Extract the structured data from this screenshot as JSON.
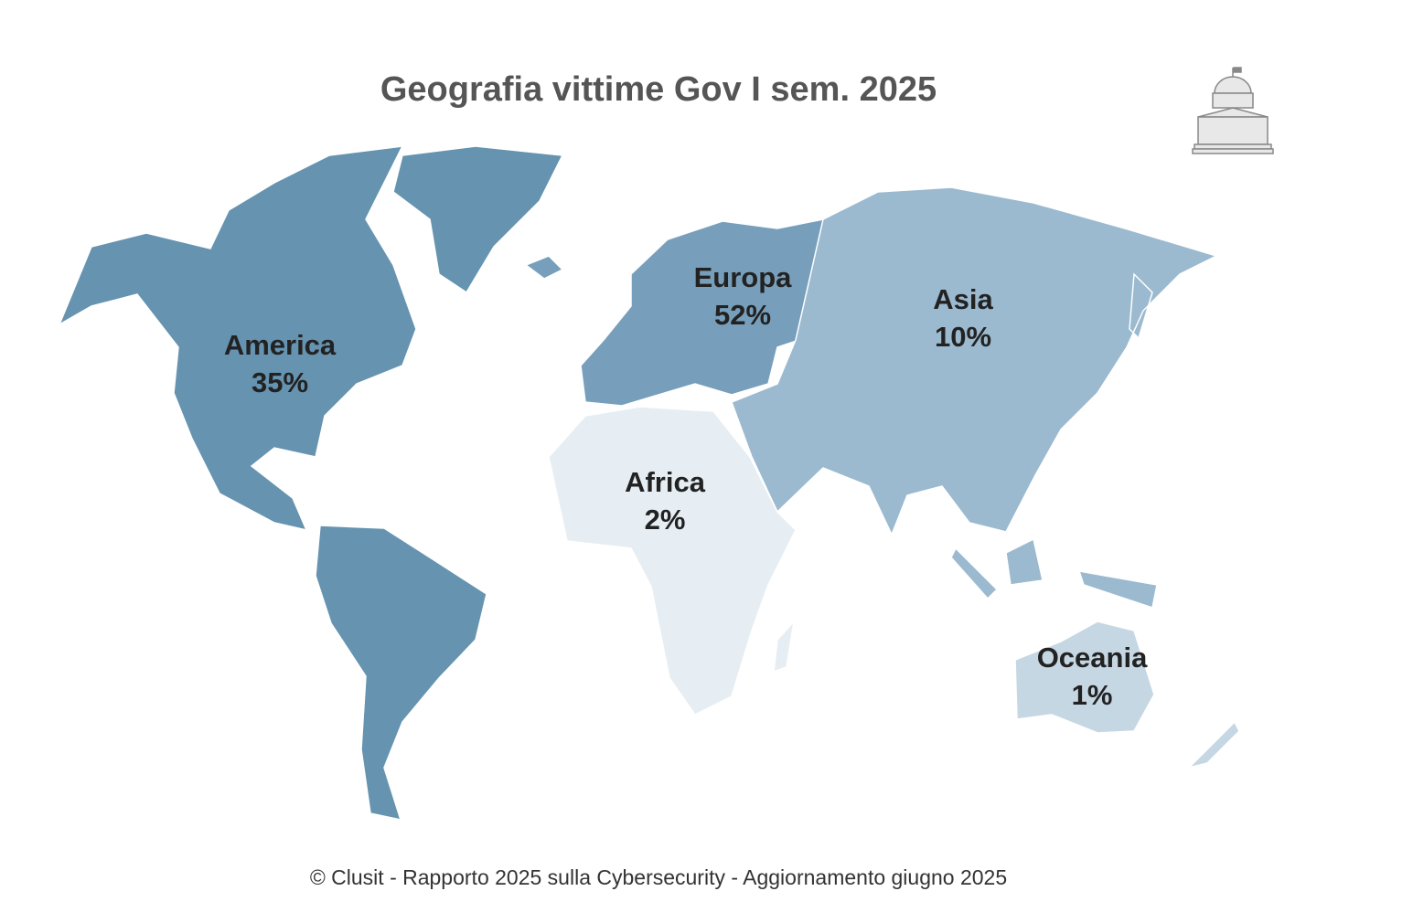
{
  "chart_data": {
    "type": "map",
    "title": "Geografia vittime Gov I sem. 2025",
    "source": "© Clusit - Rapporto 2025 sulla Cybersecurity - Aggiornamento giugno 2025",
    "categories": [
      "America",
      "Europa",
      "Asia",
      "Africa",
      "Oceania"
    ],
    "values": [
      35,
      52,
      10,
      2,
      1
    ],
    "value_labels": [
      "35%",
      "52%",
      "10%",
      "2%",
      "1%"
    ],
    "colors": [
      "#6593b0",
      "#779fbb",
      "#9bb9cf",
      "#e6eef3",
      "#c6d7e4"
    ]
  }
}
